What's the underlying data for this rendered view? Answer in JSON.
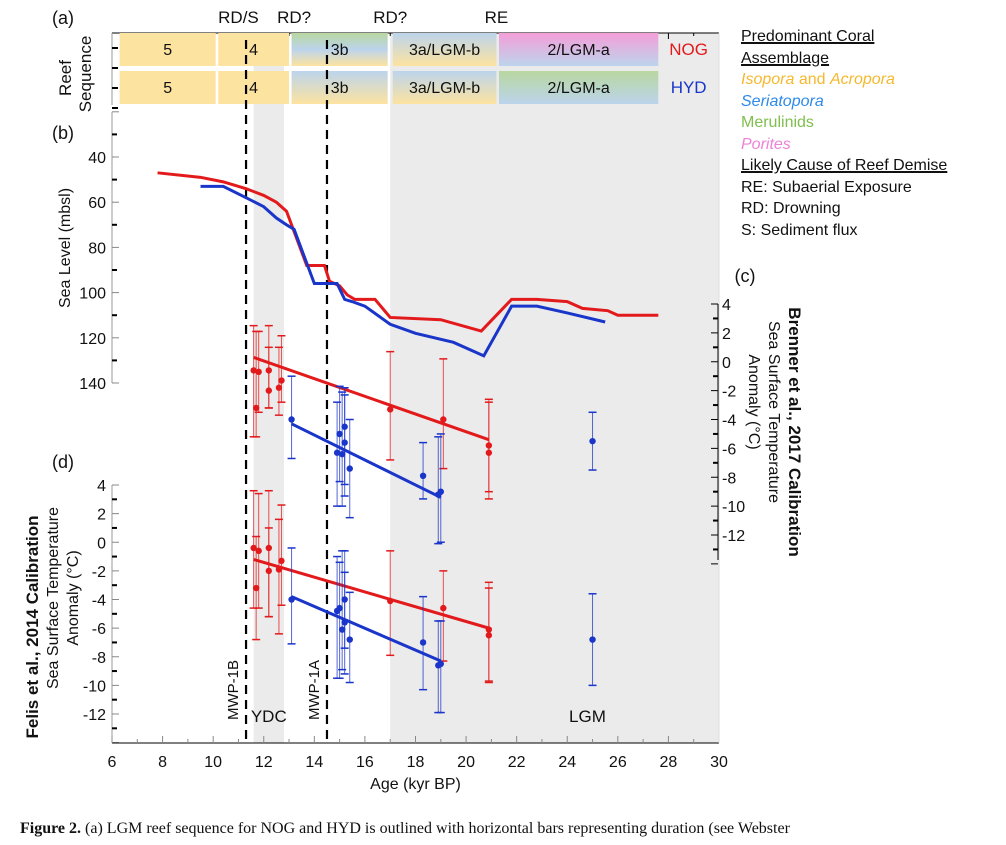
{
  "chart_data": {
    "type": "line",
    "xlabel": "Age (kyr BP)",
    "xlim": [
      6,
      30
    ],
    "xticks": [
      6,
      8,
      10,
      12,
      14,
      16,
      18,
      20,
      22,
      24,
      26,
      28,
      30
    ],
    "shaded_periods": [
      {
        "label": "YDC",
        "from": 11.6,
        "to": 12.8
      },
      {
        "label": "LGM",
        "from": 17.0,
        "to": 30.0
      }
    ],
    "event_lines": [
      {
        "label": "MWP-1B",
        "x": 11.3
      },
      {
        "label": "MWP-1A",
        "x": 14.5
      }
    ],
    "panel_a": {
      "label": "(a)",
      "ylabel": "Reef Sequence",
      "demise_labels": [
        {
          "text": "RD/S",
          "x": 11.0
        },
        {
          "text": "RD?",
          "x": 13.2
        },
        {
          "text": "RD?",
          "x": 17.0
        },
        {
          "text": "RE",
          "x": 21.2
        }
      ],
      "rows": [
        {
          "site": "NOG",
          "site_color": "#e31a1c",
          "units": [
            {
              "label": "5",
              "from": 6.3,
              "to": 10.1,
              "colors": [
                "#fde3a0"
              ]
            },
            {
              "label": "4",
              "from": 10.2,
              "to": 13.0,
              "colors": [
                "#fde3a0"
              ]
            },
            {
              "label": "3b",
              "from": 13.1,
              "to": 16.9,
              "colors": [
                "#b8d7a0",
                "#bcd4ec",
                "#fde3a0"
              ]
            },
            {
              "label": "3a/LGM-b",
              "from": 17.1,
              "to": 21.2,
              "colors": [
                "#bcd4ec",
                "#fde3a0"
              ]
            },
            {
              "label": "2/LGM-a",
              "from": 21.3,
              "to": 27.6,
              "colors": [
                "#f59ed8",
                "#bcd4ec"
              ]
            }
          ]
        },
        {
          "site": "HYD",
          "site_color": "#1a35c9",
          "units": [
            {
              "label": "5",
              "from": 6.3,
              "to": 10.1,
              "colors": [
                "#fde3a0"
              ]
            },
            {
              "label": "4",
              "from": 10.2,
              "to": 13.0,
              "colors": [
                "#fde3a0"
              ]
            },
            {
              "label": "3b",
              "from": 13.1,
              "to": 16.9,
              "colors": [
                "#bcd4ec",
                "#fde3a0"
              ]
            },
            {
              "label": "3a/LGM-b",
              "from": 17.1,
              "to": 21.2,
              "colors": [
                "#bcd4ec",
                "#fde3a0"
              ]
            },
            {
              "label": "2/LGM-a",
              "from": 21.3,
              "to": 27.6,
              "colors": [
                "#b8d7a0",
                "#bcd4ec"
              ]
            }
          ]
        }
      ]
    },
    "panel_b": {
      "label": "(b)",
      "ylabel": "Sea Level (mbsl)",
      "ylim": [
        20,
        140
      ],
      "yticks": [
        40,
        60,
        80,
        100,
        120,
        140
      ],
      "series": [
        {
          "name": "NOG",
          "color": "#e31a1c",
          "x": [
            7.8,
            9.5,
            10.4,
            11.3,
            12.0,
            12.5,
            12.9,
            13.7,
            14.4,
            14.6,
            15.0,
            15.3,
            15.6,
            16.4,
            17.0,
            19.0,
            20.6,
            21.8,
            22.8,
            24.0,
            24.6,
            25.6,
            26.0,
            27.6
          ],
          "y": [
            47,
            49,
            51,
            54,
            57,
            60,
            64,
            88,
            88,
            95,
            97,
            101,
            103,
            103,
            111,
            112,
            117,
            103,
            103,
            104,
            107,
            108,
            110,
            110
          ]
        },
        {
          "name": "HYD",
          "color": "#1a35c9",
          "x": [
            9.5,
            10.4,
            11.3,
            12.0,
            12.5,
            12.9,
            13.2,
            14.0,
            14.9,
            15.2,
            15.5,
            16.0,
            17.0,
            18.0,
            19.5,
            20.7,
            21.8,
            22.8,
            24.0,
            25.5
          ],
          "y": [
            53,
            53,
            58,
            62,
            67,
            70,
            72,
            96,
            96,
            103,
            104,
            106,
            114,
            118,
            122,
            128,
            106,
            106,
            109,
            113
          ]
        }
      ]
    },
    "panel_c": {
      "label": "(c)",
      "ylabel_bold": "Brenner et al., 2017 Calibration",
      "ylabel": "Sea Surface Temperature Anomaly (°C)",
      "ylim": [
        -14,
        4
      ],
      "yticks": [
        4,
        2,
        0,
        -2,
        -4,
        -6,
        -8,
        -10,
        -12
      ],
      "series": [
        {
          "name": "NOG",
          "color": "#e31a1c",
          "points": [
            {
              "x": 11.6,
              "y": -0.6,
              "lo": -5.2,
              "hi": 2.5
            },
            {
              "x": 11.7,
              "y": -3.2,
              "lo": -5.2,
              "hi": 2.1
            },
            {
              "x": 11.8,
              "y": -0.7,
              "lo": -3.5,
              "hi": 2.1
            },
            {
              "x": 12.2,
              "y": -0.6,
              "lo": -3.2,
              "hi": 2.5
            },
            {
              "x": 12.2,
              "y": -2.0,
              "lo": -3.2,
              "hi": 1.0
            },
            {
              "x": 12.6,
              "y": -1.8,
              "lo": -3.7,
              "hi": 1.0
            },
            {
              "x": 12.7,
              "y": -1.3,
              "lo": -2.8,
              "hi": 1.8
            },
            {
              "x": 17.0,
              "y": -3.3,
              "lo": -6.8,
              "hi": 0.7
            },
            {
              "x": 19.1,
              "y": -4.0,
              "lo": -7.4,
              "hi": 0.2
            },
            {
              "x": 20.9,
              "y": -5.8,
              "lo": -9.0,
              "hi": -2.6
            },
            {
              "x": 20.9,
              "y": -6.3,
              "lo": -9.5,
              "hi": -2.8
            }
          ],
          "trend": {
            "x": [
              11.6,
              20.9
            ],
            "y": [
              0.3,
              -5.4
            ]
          }
        },
        {
          "name": "HYD",
          "color": "#1a35c9",
          "points": [
            {
              "x": 13.1,
              "y": -4.0,
              "lo": -6.7,
              "hi": -1.0
            },
            {
              "x": 14.9,
              "y": -6.3,
              "lo": -10.0,
              "hi": -2.8
            },
            {
              "x": 15.0,
              "y": -5.0,
              "lo": -8.3,
              "hi": -1.7
            },
            {
              "x": 15.1,
              "y": -6.4,
              "lo": -10.0,
              "hi": -2.1
            },
            {
              "x": 15.2,
              "y": -4.5,
              "lo": -8.5,
              "hi": -1.8
            },
            {
              "x": 15.2,
              "y": -5.6,
              "lo": -9.3,
              "hi": -2.3
            },
            {
              "x": 15.4,
              "y": -7.4,
              "lo": -10.8,
              "hi": -4.0
            },
            {
              "x": 18.3,
              "y": -7.9,
              "lo": -9.5,
              "hi": -5.6
            },
            {
              "x": 18.9,
              "y": -9.2,
              "lo": -12.6,
              "hi": -5.2
            },
            {
              "x": 19.0,
              "y": -9.0,
              "lo": -12.5,
              "hi": -5.0
            },
            {
              "x": 25.0,
              "y": -5.5,
              "lo": -7.5,
              "hi": -3.5
            }
          ],
          "trend": {
            "x": [
              13.1,
              19.0
            ],
            "y": [
              -4.3,
              -9.4
            ]
          }
        }
      ]
    },
    "panel_d": {
      "label": "(d)",
      "ylabel_bold": "Felis et al., 2014 Calibration",
      "ylabel": "Sea Surface Temperature Anomaly (°C)",
      "ylim": [
        -14,
        4
      ],
      "yticks": [
        4,
        2,
        0,
        -2,
        -4,
        -6,
        -8,
        -10,
        -12
      ],
      "series": [
        {
          "name": "NOG",
          "color": "#e31a1c",
          "points": [
            {
              "x": 11.6,
              "y": -0.4,
              "lo": -4.6,
              "hi": 3.6
            },
            {
              "x": 11.7,
              "y": -3.2,
              "lo": -6.8,
              "hi": 0.4
            },
            {
              "x": 11.8,
              "y": -0.6,
              "lo": -4.6,
              "hi": 3.4
            },
            {
              "x": 12.2,
              "y": -0.4,
              "lo": -5.2,
              "hi": 3.6
            },
            {
              "x": 12.2,
              "y": -2.0,
              "lo": -5.2,
              "hi": 1.0
            },
            {
              "x": 12.6,
              "y": -1.9,
              "lo": -6.4,
              "hi": 1.6
            },
            {
              "x": 12.7,
              "y": -1.3,
              "lo": -4.4,
              "hi": 2.6
            },
            {
              "x": 17.0,
              "y": -4.1,
              "lo": -7.9,
              "hi": -0.6
            },
            {
              "x": 19.1,
              "y": -4.6,
              "lo": -8.3,
              "hi": -2.0
            },
            {
              "x": 20.9,
              "y": -6.1,
              "lo": -9.7,
              "hi": -2.8
            },
            {
              "x": 20.9,
              "y": -6.5,
              "lo": -9.8,
              "hi": -3.2
            }
          ],
          "trend": {
            "x": [
              11.6,
              20.9
            ],
            "y": [
              -1.2,
              -6.0
            ]
          }
        },
        {
          "name": "HYD",
          "color": "#1a35c9",
          "points": [
            {
              "x": 13.1,
              "y": -4.0,
              "lo": -7.1,
              "hi": -0.4
            },
            {
              "x": 14.9,
              "y": -4.8,
              "lo": -9.5,
              "hi": -1.0
            },
            {
              "x": 15.0,
              "y": -4.6,
              "lo": -9.5,
              "hi": -1.4
            },
            {
              "x": 15.1,
              "y": -6.1,
              "lo": -8.9,
              "hi": -0.6
            },
            {
              "x": 15.2,
              "y": -4.0,
              "lo": -7.4,
              "hi": -0.6
            },
            {
              "x": 15.2,
              "y": -5.6,
              "lo": -9.2,
              "hi": -2.1
            },
            {
              "x": 15.4,
              "y": -6.8,
              "lo": -9.8,
              "hi": -3.5
            },
            {
              "x": 18.3,
              "y": -7.0,
              "lo": -10.3,
              "hi": -3.8
            },
            {
              "x": 18.9,
              "y": -8.6,
              "lo": -11.9,
              "hi": -5.5
            },
            {
              "x": 19.0,
              "y": -8.5,
              "lo": -11.9,
              "hi": -5.5
            },
            {
              "x": 25.0,
              "y": -6.8,
              "lo": -10.0,
              "hi": -3.6
            }
          ],
          "trend": {
            "x": [
              13.1,
              19.0
            ],
            "y": [
              -3.8,
              -8.3
            ]
          }
        }
      ]
    }
  },
  "legend": {
    "heading1_line1": "Predominant Coral",
    "heading1_line2": "Assemblage",
    "isopora": "Isopora",
    "and_text": " and ",
    "acropora": "Acropora",
    "seriatopora": "Seriatopora",
    "merulinids": "Merulinids",
    "porites": "Porites",
    "heading2": "Likely Cause of Reef Demise",
    "re": "RE: Subaerial Exposure",
    "rd": "RD: Drowning",
    "s": "S: Sediment flux",
    "colors": {
      "isopora_acropora": "#f5b82e",
      "seriatopora": "#2d8ae8",
      "merulinids": "#7fbf4d",
      "porites": "#ee82d9"
    }
  },
  "caption": {
    "lead": "Figure 2.",
    "text": " (a) LGM reef sequence for NOG and HYD is outlined with horizontal bars representing duration (see Webster"
  }
}
